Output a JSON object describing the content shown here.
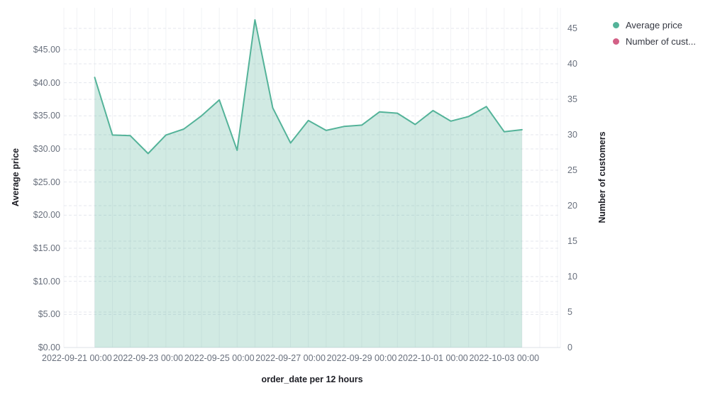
{
  "chart_data": {
    "type": "area",
    "title": "",
    "xlabel": "order_date per 12 hours",
    "ylabel_left": "Average price",
    "ylabel_right": "Number of customers",
    "x": [
      "2022-09-21 12:00",
      "2022-09-22 00:00",
      "2022-09-22 12:00",
      "2022-09-23 00:00",
      "2022-09-23 12:00",
      "2022-09-24 00:00",
      "2022-09-24 12:00",
      "2022-09-25 00:00",
      "2022-09-25 12:00",
      "2022-09-26 00:00",
      "2022-09-26 12:00",
      "2022-09-27 00:00",
      "2022-09-27 12:00",
      "2022-09-28 00:00",
      "2022-09-28 12:00",
      "2022-09-29 00:00",
      "2022-09-29 12:00",
      "2022-09-30 00:00",
      "2022-09-30 12:00",
      "2022-10-01 00:00",
      "2022-10-01 12:00",
      "2022-10-02 00:00",
      "2022-10-02 12:00",
      "2022-10-03 00:00",
      "2022-10-03 12:00"
    ],
    "series": [
      {
        "name": "Average price",
        "legend_label": "Average price",
        "color": "#54B399",
        "fill_opacity": 0.27,
        "values": [
          40.8,
          32.1,
          32.0,
          29.3,
          32.1,
          33.0,
          35.0,
          37.4,
          29.8,
          49.5,
          36.2,
          30.9,
          34.3,
          32.8,
          33.4,
          33.6,
          35.6,
          35.4,
          33.7,
          35.8,
          34.2,
          34.9,
          36.4,
          32.6,
          32.9
        ]
      },
      {
        "name": "Number of customers",
        "legend_label": "Number of cust...",
        "color": "#D36086",
        "values": []
      }
    ],
    "x_tick_labels": [
      "2022-09-21 00:00",
      "2022-09-23 00:00",
      "2022-09-25 00:00",
      "2022-09-27 00:00",
      "2022-09-29 00:00",
      "2022-10-01 00:00",
      "2022-10-03 00:00"
    ],
    "y_left_tick_labels": [
      "$0.00",
      "$5.00",
      "$10.00",
      "$15.00",
      "$20.00",
      "$25.00",
      "$30.00",
      "$35.00",
      "$40.00",
      "$45.00"
    ],
    "y_left_tick_values": [
      0,
      5,
      10,
      15,
      20,
      25,
      30,
      35,
      40,
      45
    ],
    "y_right_tick_labels": [
      "0",
      "5",
      "10",
      "15",
      "20",
      "25",
      "30",
      "35",
      "40",
      "45"
    ],
    "y_right_tick_values": [
      0,
      5,
      10,
      15,
      20,
      25,
      30,
      35,
      40,
      45
    ],
    "ylim_left": [
      0,
      51.3
    ],
    "ylim_right": [
      0,
      47.9
    ],
    "grid": true,
    "legend_position": "top-right"
  },
  "colors": {
    "series_green": "#54B399",
    "series_pink": "#D36086",
    "tick_text": "#69707D",
    "title_text": "#1D1E25",
    "legend_text": "#343741",
    "grid_h": "#E4E7ED",
    "grid_v": "#F1F2F5",
    "baseline": "#DCE0E7"
  }
}
